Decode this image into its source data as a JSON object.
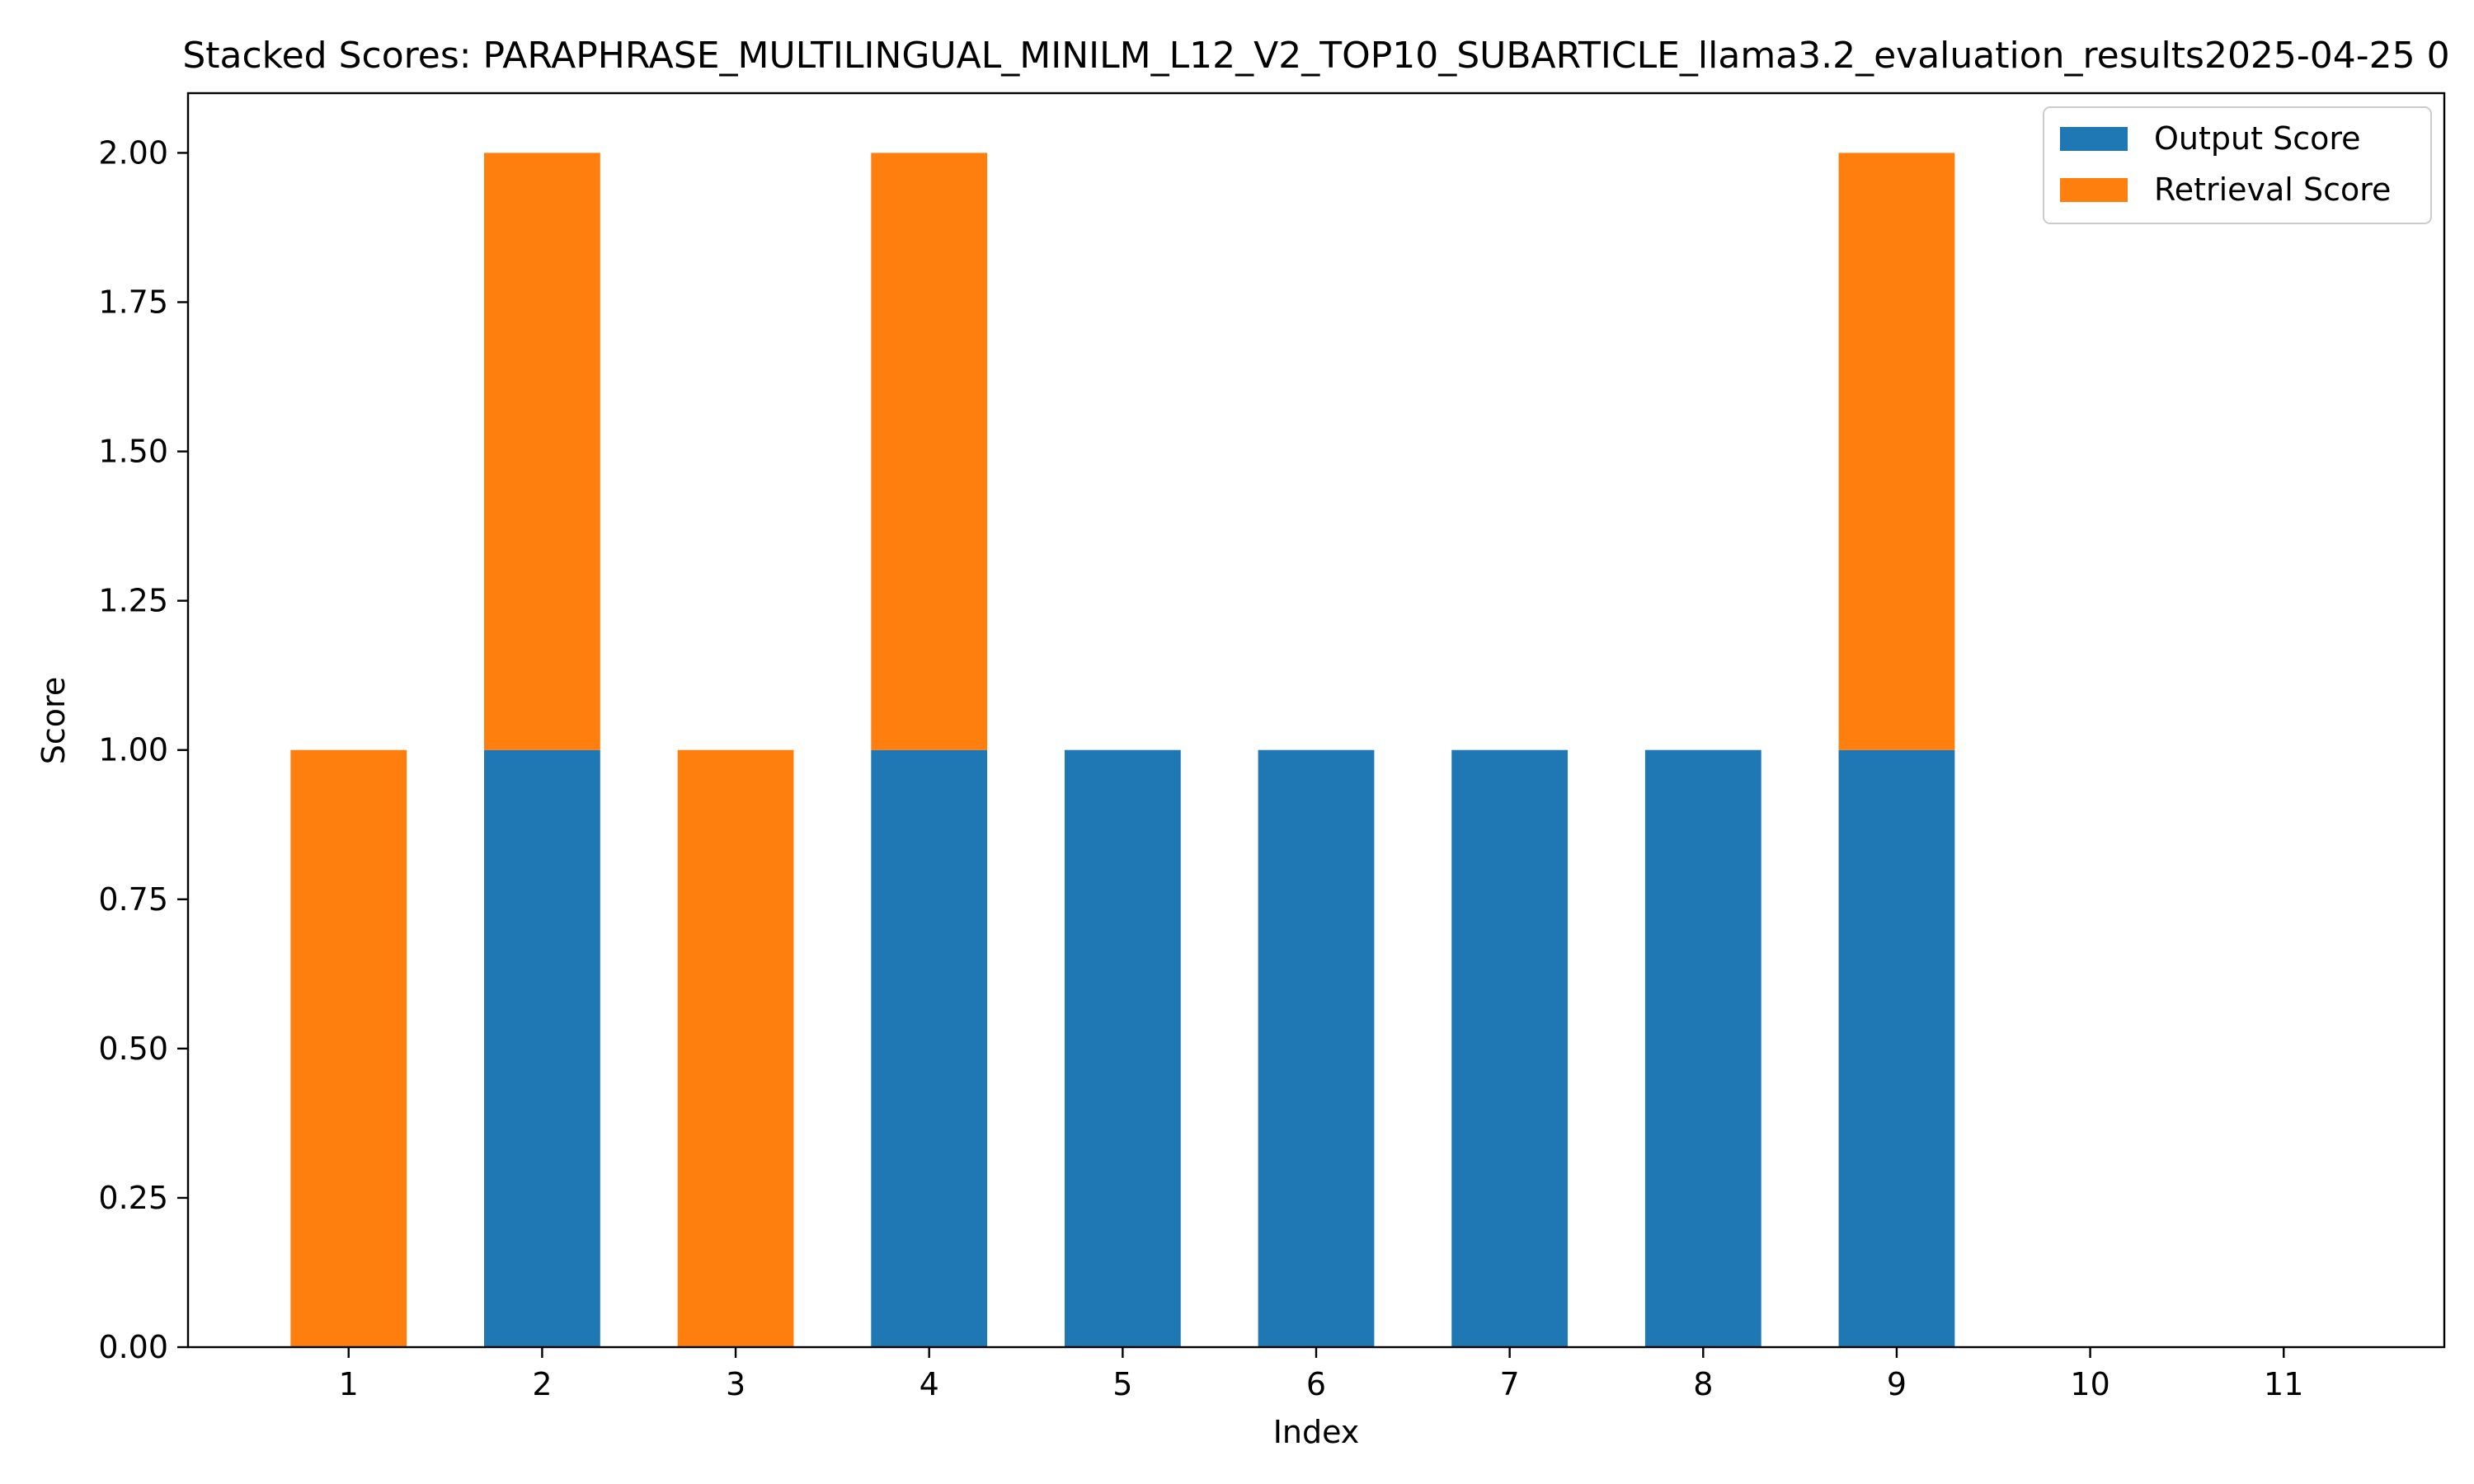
{
  "chart_data": {
    "type": "bar",
    "stacked": true,
    "title": "Stacked Scores: PARAPHRASE_MULTILINGUAL_MINILM_L12_V2_TOP10_SUBARTICLE_llama3.2_evaluation_results2025-04-25 0",
    "xlabel": "Index",
    "ylabel": "Score",
    "categories": [
      "1",
      "2",
      "3",
      "4",
      "5",
      "6",
      "7",
      "8",
      "9",
      "10",
      "11"
    ],
    "series": [
      {
        "name": "Output Score",
        "color": "#1f77b4",
        "values": [
          0,
          1,
          0,
          1,
          1,
          1,
          1,
          1,
          1,
          0,
          0
        ]
      },
      {
        "name": "Retrieval Score",
        "color": "#ff7f0e",
        "values": [
          1,
          1,
          1,
          1,
          0,
          0,
          0,
          0,
          1,
          0,
          0
        ]
      }
    ],
    "ylim": [
      0,
      2.1
    ],
    "yticks": [
      "0.00",
      "0.25",
      "0.50",
      "0.75",
      "1.00",
      "1.25",
      "1.50",
      "1.75",
      "2.00"
    ],
    "xlim": [
      0.17,
      11.83
    ],
    "grid": false,
    "legend_position": "top-right"
  }
}
